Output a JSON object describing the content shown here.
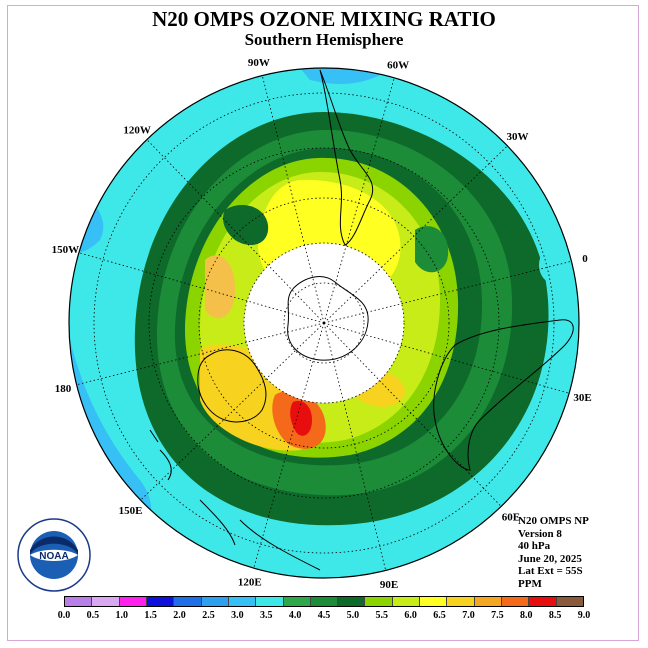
{
  "title": "N20 OMPS OZONE MIXING RATIO",
  "subtitle": "Southern Hemisphere",
  "longitude_labels": [
    {
      "text": "90W",
      "angle": -90
    },
    {
      "text": "60W",
      "angle": -60
    },
    {
      "text": "30W",
      "angle": -30
    },
    {
      "text": "0",
      "angle": 0
    },
    {
      "text": "30E",
      "angle": 30
    },
    {
      "text": "60E",
      "angle": 60
    },
    {
      "text": "90E",
      "angle": 90
    },
    {
      "text": "120E",
      "angle": 120
    },
    {
      "text": "150E",
      "angle": 150
    },
    {
      "text": "180",
      "angle": 180
    },
    {
      "text": "150W",
      "angle": -150
    },
    {
      "text": "120W",
      "angle": -120
    }
  ],
  "info": {
    "line1": "N20 OMPS NP",
    "line2": "Version 8",
    "line3": "40 hPa",
    "line4": "June 20, 2025",
    "line5": "Lat Ext = 55S",
    "line6": "PPM"
  },
  "colorbar": {
    "labels": [
      "0.0",
      "0.5",
      "1.0",
      "1.5",
      "2.0",
      "2.5",
      "3.0",
      "3.5",
      "4.0",
      "4.5",
      "5.0",
      "5.5",
      "6.0",
      "6.5",
      "7.0",
      "7.5",
      "8.0",
      "8.5",
      "9.0"
    ],
    "colors": [
      "#b87fe8",
      "#d8a8f0",
      "#ff22ee",
      "#1010dd",
      "#1f6fe8",
      "#2f9ff0",
      "#37c0f5",
      "#3fe8e8",
      "#2ea84a",
      "#1c8c38",
      "#0e6a2a",
      "#8cd400",
      "#c8ec18",
      "#ffff22",
      "#f7d21e",
      "#f5a623",
      "#f56a1a",
      "#e80e0e",
      "#8b5a3c"
    ]
  },
  "logo": {
    "text": "NOAA",
    "ring_text": "NATIONAL OCEANIC AND ATMOSPHERIC ADMINISTRATION - U.S. DEPARTMENT OF COMMERCE"
  }
}
